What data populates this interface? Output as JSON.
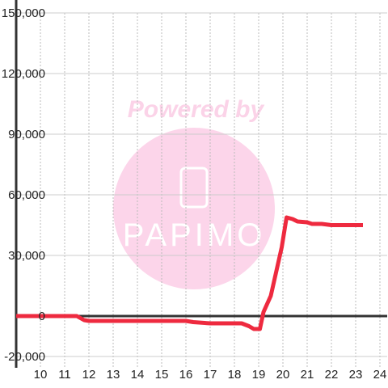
{
  "chart_data": {
    "type": "line",
    "x": [
      9,
      11.5,
      11.8,
      12,
      16,
      16.3,
      17,
      18.3,
      18.6,
      18.8,
      19.05,
      19.2,
      19.5,
      19.8,
      19.95,
      20.15,
      20.4,
      20.6,
      21.0,
      21.2,
      21.6,
      22.0,
      23.3
    ],
    "series": [
      {
        "name": null,
        "color": "#ee2a3f",
        "values": [
          0,
          0,
          -2000,
          -2400,
          -2400,
          -3000,
          -3600,
          -3600,
          -5000,
          -6400,
          -6400,
          2000,
          10000,
          26000,
          34000,
          48800,
          48000,
          46800,
          46400,
          45600,
          45600,
          45000,
          45000
        ]
      }
    ],
    "xlim": [
      9,
      24.3
    ],
    "xticks": [
      10,
      11,
      12,
      13,
      14,
      15,
      16,
      17,
      18,
      19,
      20,
      21,
      22,
      23,
      24
    ],
    "ylim": [
      -20000,
      150000
    ],
    "yticks": [
      {
        "value": -20000,
        "label": "-20,000"
      },
      0,
      {
        "value": 30000,
        "label": "30,000"
      },
      {
        "value": 60000,
        "label": "60,000"
      },
      {
        "value": 90000,
        "label": "90,000"
      },
      {
        "value": 120000,
        "label": "120,000"
      },
      {
        "value": 150000,
        "label": "150,000"
      }
    ],
    "grid": true
  },
  "watermark": {
    "line1": "Powered by",
    "line2": "PAPIMO"
  }
}
